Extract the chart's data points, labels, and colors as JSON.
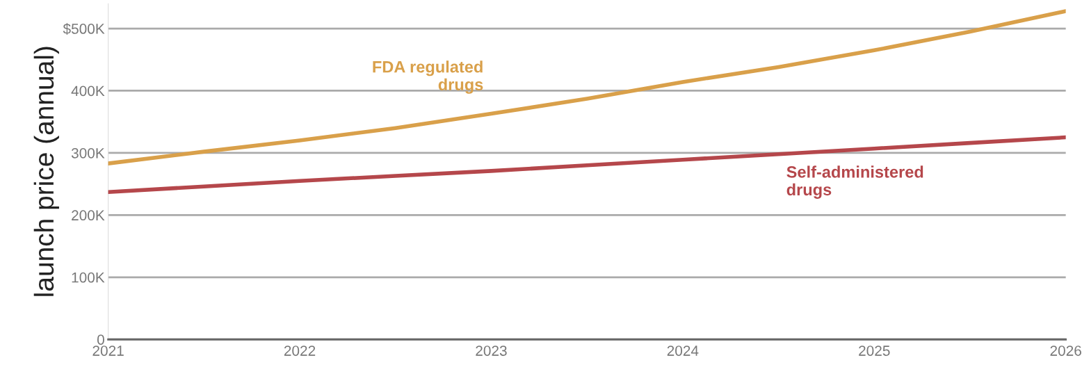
{
  "chart_data": {
    "type": "line",
    "ylabel": "launch price (annual)",
    "x": [
      2021,
      2021.5,
      2022,
      2022.5,
      2023,
      2023.5,
      2024,
      2024.5,
      2025,
      2025.5,
      2026
    ],
    "series": [
      {
        "name": "FDA regulated\ndrugs",
        "color": "#d9a04a",
        "values": [
          283000,
          302000,
          320000,
          340000,
          363000,
          387000,
          414000,
          438000,
          465000,
          495000,
          528000
        ]
      },
      {
        "name": "Self-administered\ndrugs",
        "color": "#b5474b",
        "values": [
          237000,
          246000,
          255000,
          263000,
          271000,
          280000,
          289000,
          298000,
          307000,
          316000,
          325000
        ]
      }
    ],
    "xlim": [
      2021,
      2026
    ],
    "xticks": [
      2021,
      2022,
      2023,
      2024,
      2025,
      2026
    ],
    "ylim": [
      0,
      540000
    ],
    "yticks": [
      {
        "value": 0,
        "label": "0"
      },
      {
        "value": 100000,
        "label": "100K"
      },
      {
        "value": 200000,
        "label": "200K"
      },
      {
        "value": 300000,
        "label": "300K"
      },
      {
        "value": 400000,
        "label": "400K"
      },
      {
        "value": 500000,
        "label": "$500K"
      }
    ],
    "grid": "y",
    "marker": "none",
    "line_style": "solid"
  }
}
